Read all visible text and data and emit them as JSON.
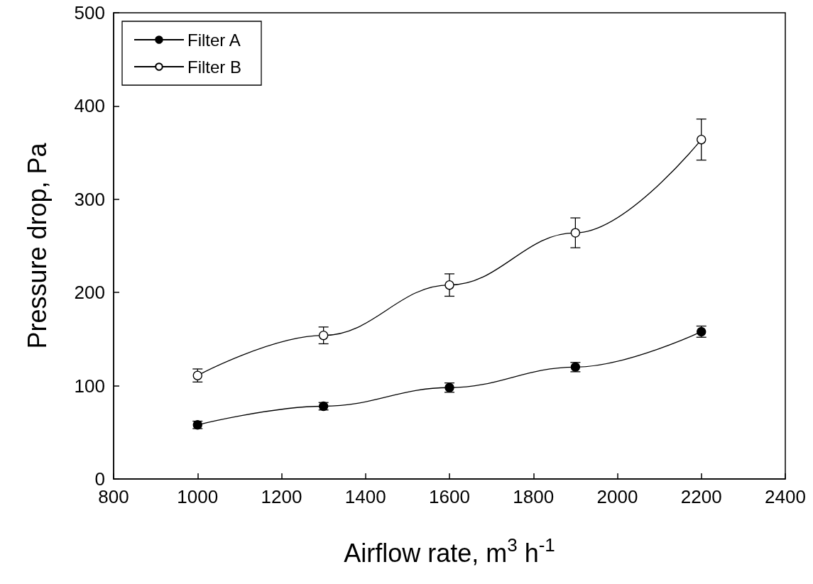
{
  "chart_data": {
    "type": "line",
    "xlabel": "Airflow rate, m$^{3}$ h$^{-1}$",
    "ylabel": "Pressure drop, Pa",
    "x": [
      1000,
      1300,
      1600,
      1900,
      2200
    ],
    "series": [
      {
        "name": "Filter A",
        "color": "#000000",
        "values": [
          58,
          78,
          98,
          120,
          158
        ],
        "errors": [
          4,
          4,
          5,
          5,
          6
        ]
      },
      {
        "name": "Filter B",
        "color": "#000000",
        "values": [
          111,
          154,
          208,
          264,
          364
        ],
        "errors": [
          7,
          9,
          12,
          16,
          22
        ]
      }
    ],
    "xlim": [
      800,
      2400
    ],
    "xticks": [
      800,
      1000,
      1200,
      1400,
      1600,
      1800,
      2000,
      2200,
      2400
    ],
    "ylim": [
      0,
      500
    ],
    "yticks": [
      0,
      100,
      200,
      300,
      400,
      500
    ],
    "grid": false,
    "legend": "top left",
    "marker": "circle",
    "line_style": "solid"
  }
}
